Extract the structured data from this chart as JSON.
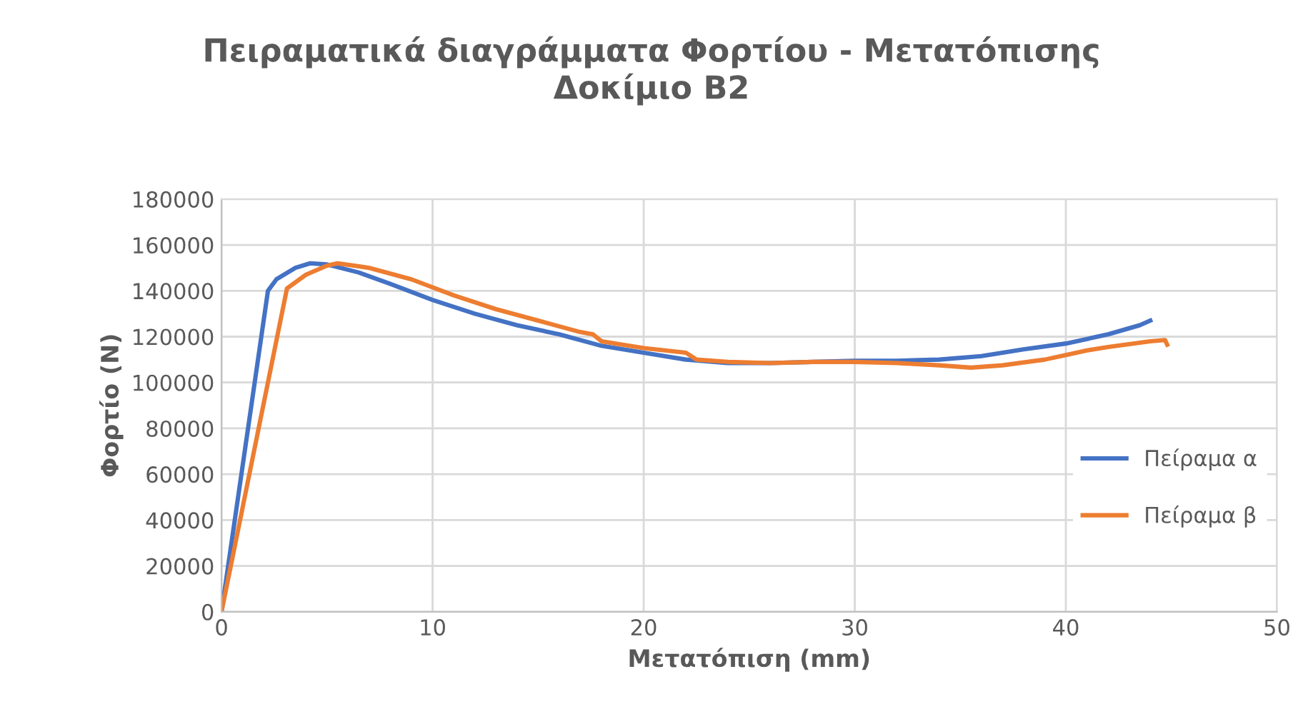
{
  "chart_data": {
    "type": "line",
    "title": "Πειραματικά διαγράμματα Φορτίου - Μετατόπισης\nΔοκίμιο Β2",
    "xlabel": "Μετατόπιση (mm)",
    "ylabel": "Φορτίο (N)",
    "xlim": [
      0,
      50
    ],
    "xticks": [
      0,
      10,
      20,
      30,
      40,
      50
    ],
    "ylim": [
      0,
      180000
    ],
    "yticks": [
      0,
      20000,
      40000,
      60000,
      80000,
      100000,
      120000,
      140000,
      160000,
      180000
    ],
    "grid": true,
    "legend": "right",
    "marker": "none",
    "line_style": "solid",
    "series": [
      {
        "name": "Πείραμα α",
        "color": "#4472c4",
        "x": [
          0,
          2.2,
          2.6,
          3.5,
          4.2,
          5,
          6.5,
          8,
          10,
          12,
          14,
          16,
          18,
          20,
          22,
          24,
          26,
          28,
          30,
          32,
          34,
          36,
          38,
          40,
          42,
          43.5,
          44
        ],
        "values": [
          0,
          140000,
          145000,
          150000,
          152000,
          151500,
          148000,
          143000,
          136000,
          130000,
          125000,
          121000,
          116000,
          113000,
          110000,
          108500,
          108500,
          109000,
          109500,
          109500,
          110000,
          111500,
          114500,
          117000,
          121000,
          125000,
          127000
        ]
      },
      {
        "name": "Πείραμα β",
        "color": "#ed7d31",
        "x": [
          0,
          3.1,
          4,
          5,
          5.5,
          7,
          9,
          11,
          13,
          15,
          17,
          17.6,
          18,
          20,
          22,
          22.5,
          24,
          26,
          28,
          30,
          32,
          34,
          35.5,
          37,
          39,
          40,
          41,
          42,
          44,
          44.7,
          44.8
        ],
        "values": [
          0,
          141000,
          147000,
          151000,
          152000,
          150000,
          145000,
          138000,
          132000,
          127000,
          122000,
          121000,
          118000,
          115000,
          113000,
          110000,
          109000,
          108500,
          109000,
          109000,
          108500,
          107500,
          106500,
          107500,
          110000,
          112000,
          114000,
          115500,
          118000,
          118500,
          116500
        ]
      }
    ]
  }
}
